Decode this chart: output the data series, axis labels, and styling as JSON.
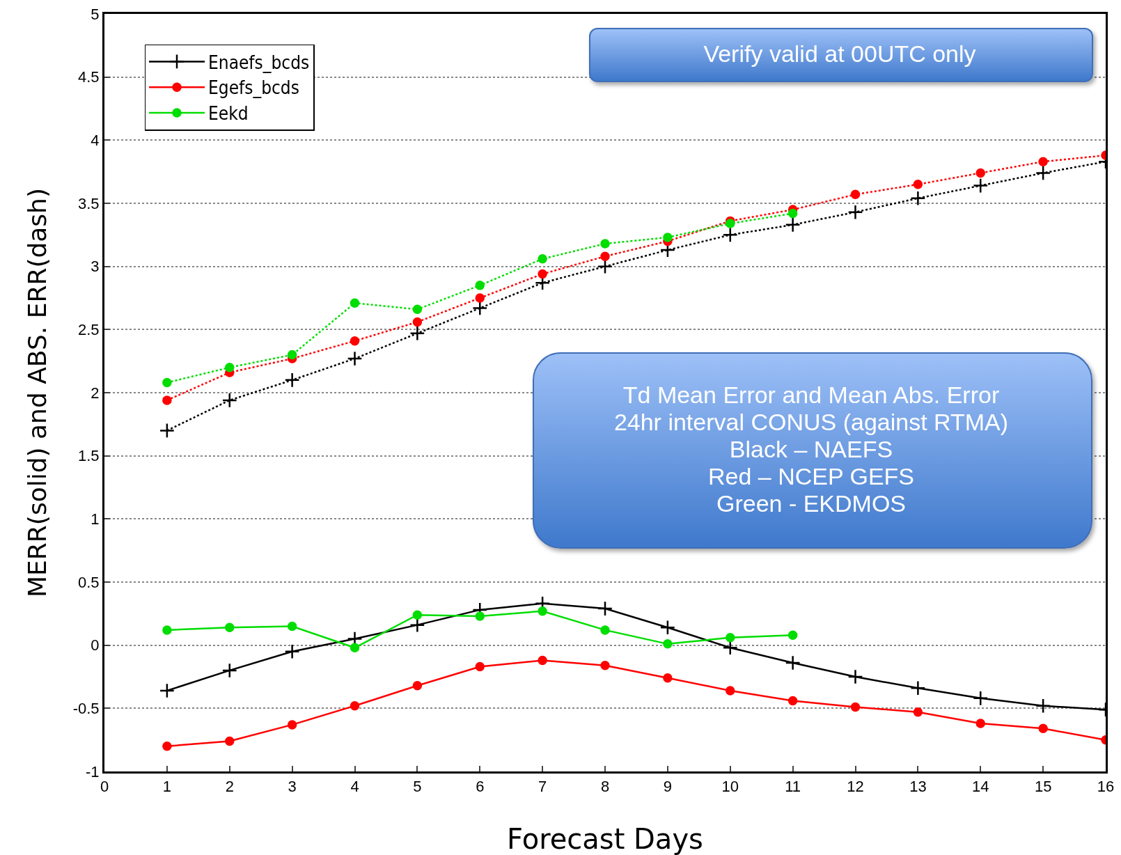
{
  "chart_data": {
    "type": "line",
    "xlabel": "Forecast Days",
    "ylabel": "MERR(solid) and ABS. ERR(dash)",
    "x": [
      1,
      2,
      3,
      4,
      5,
      6,
      7,
      8,
      9,
      10,
      11,
      12,
      13,
      14,
      15,
      16
    ],
    "xlim": [
      0,
      16
    ],
    "xticks": [
      0,
      1,
      2,
      3,
      4,
      5,
      6,
      7,
      8,
      9,
      10,
      11,
      12,
      13,
      14,
      15,
      16
    ],
    "ylim": [
      -1,
      5
    ],
    "yticks": [
      -1,
      -0.5,
      0,
      0.5,
      1,
      1.5,
      2,
      2.5,
      3,
      3.5,
      4,
      4.5,
      5
    ],
    "grid": "y",
    "legend": "top left",
    "series": [
      {
        "name": "Enaefs_bcds",
        "color": "#000000",
        "marker": "cross",
        "line_style": "solid",
        "values": [
          -0.36,
          -0.2,
          -0.05,
          0.05,
          0.16,
          0.28,
          0.33,
          0.29,
          0.14,
          -0.02,
          -0.14,
          -0.25,
          -0.34,
          -0.42,
          -0.48,
          -0.51
        ]
      },
      {
        "name": "Egefs_bcds",
        "color": "#ff0000",
        "marker": "circle",
        "line_style": "solid",
        "values": [
          -0.8,
          -0.76,
          -0.63,
          -0.48,
          -0.32,
          -0.17,
          -0.12,
          -0.16,
          -0.26,
          -0.36,
          -0.44,
          -0.49,
          -0.53,
          -0.62,
          -0.66,
          -0.75
        ]
      },
      {
        "name": "Eekd",
        "color": "#00dd00",
        "marker": "circle",
        "line_style": "solid",
        "values": [
          0.12,
          0.14,
          0.15,
          -0.02,
          0.24,
          0.23,
          0.27,
          0.12,
          0.01,
          0.06,
          0.08,
          null,
          null,
          null,
          null,
          null
        ]
      },
      {
        "color": "#000000",
        "marker": "cross",
        "line_style": "dotted",
        "values": [
          1.7,
          1.94,
          2.1,
          2.27,
          2.47,
          2.67,
          2.87,
          3.0,
          3.13,
          3.25,
          3.33,
          3.43,
          3.54,
          3.64,
          3.74,
          3.83
        ]
      },
      {
        "color": "#ff0000",
        "marker": "circle",
        "line_style": "dotted",
        "values": [
          1.94,
          2.16,
          2.27,
          2.41,
          2.56,
          2.75,
          2.94,
          3.08,
          3.2,
          3.36,
          3.45,
          3.57,
          3.65,
          3.74,
          3.83,
          3.88
        ]
      },
      {
        "color": "#00dd00",
        "marker": "circle",
        "line_style": "dotted",
        "values": [
          2.08,
          2.2,
          2.3,
          2.71,
          2.66,
          2.85,
          3.06,
          3.18,
          3.23,
          3.34,
          3.42,
          null,
          null,
          null,
          null,
          null
        ]
      }
    ],
    "annotations": [
      "Verify valid at 00UTC only",
      "Td Mean Error and Mean Abs. Error\n24hr interval CONUS (against RTMA)\nBlack – NAEFS\nRed – NCEP GEFS\nGreen - EKDMOS"
    ]
  }
}
